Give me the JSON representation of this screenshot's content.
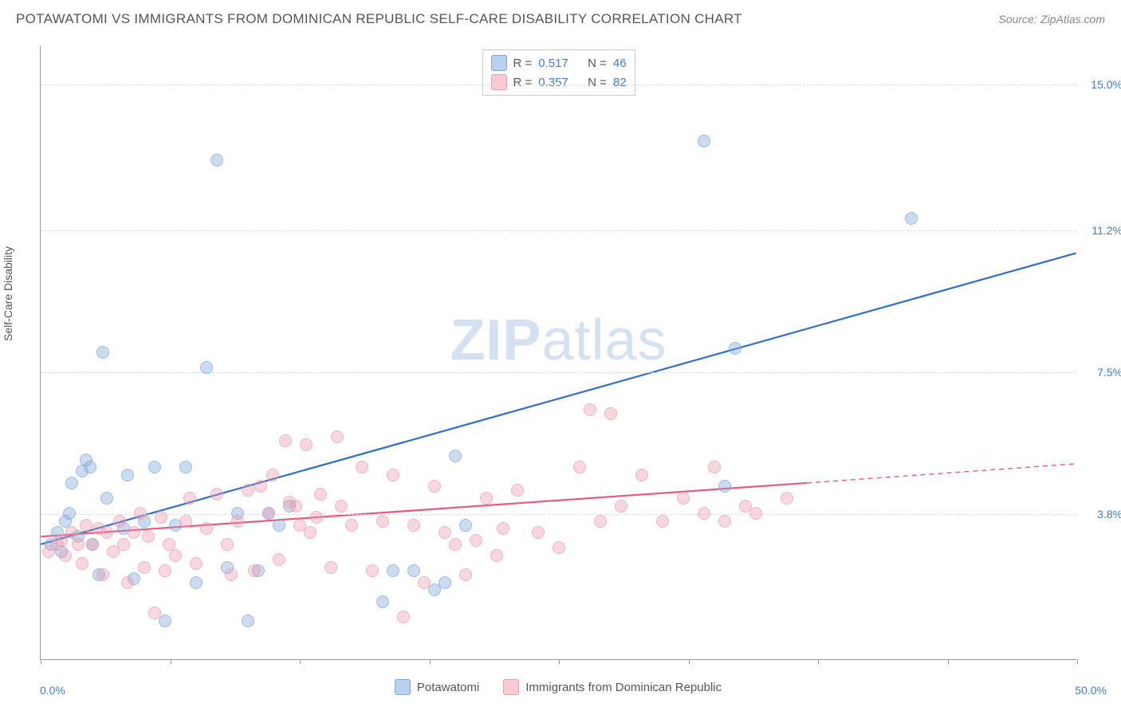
{
  "title": "POTAWATOMI VS IMMIGRANTS FROM DOMINICAN REPUBLIC SELF-CARE DISABILITY CORRELATION CHART",
  "source_label": "Source:",
  "source_value": "ZipAtlas.com",
  "ylabel": "Self-Care Disability",
  "watermark": {
    "bold": "ZIP",
    "rest": "atlas"
  },
  "chart": {
    "type": "scatter",
    "xlim": [
      0,
      50
    ],
    "ylim": [
      0,
      16
    ],
    "x_min_label": "0.0%",
    "x_max_label": "50.0%",
    "y_ticks": [
      3.8,
      7.5,
      11.2,
      15.0
    ],
    "y_tick_labels": [
      "3.8%",
      "7.5%",
      "11.2%",
      "15.0%"
    ],
    "x_tick_positions": [
      0,
      6.25,
      12.5,
      18.75,
      25,
      31.25,
      37.5,
      43.75,
      50
    ],
    "grid_color": "#dddddd",
    "axis_color": "#999999",
    "background_color": "#ffffff",
    "point_radius": 8,
    "series": [
      {
        "name": "Potawatomi",
        "color_fill": "rgba(130,170,220,0.55)",
        "color_stroke": "#7aa8d8",
        "line_color": "#2e6fd0",
        "line_width": 2.2,
        "R": "0.517",
        "N": "46",
        "trend": {
          "x1": 0,
          "y1": 3.0,
          "x2": 50,
          "y2": 10.6
        },
        "points": [
          [
            0.5,
            3.0
          ],
          [
            0.8,
            3.3
          ],
          [
            1.0,
            2.8
          ],
          [
            1.2,
            3.6
          ],
          [
            1.4,
            3.8
          ],
          [
            1.5,
            4.6
          ],
          [
            1.8,
            3.2
          ],
          [
            2.0,
            4.9
          ],
          [
            2.2,
            5.2
          ],
          [
            2.4,
            5.0
          ],
          [
            2.5,
            3.0
          ],
          [
            2.8,
            2.2
          ],
          [
            3.0,
            8.0
          ],
          [
            3.2,
            4.2
          ],
          [
            4.0,
            3.4
          ],
          [
            4.2,
            4.8
          ],
          [
            4.5,
            2.1
          ],
          [
            5.0,
            3.6
          ],
          [
            5.5,
            5.0
          ],
          [
            6.0,
            1.0
          ],
          [
            6.5,
            3.5
          ],
          [
            7.0,
            5.0
          ],
          [
            7.5,
            2.0
          ],
          [
            8.0,
            7.6
          ],
          [
            8.5,
            13.0
          ],
          [
            9.0,
            2.4
          ],
          [
            9.5,
            3.8
          ],
          [
            10.0,
            1.0
          ],
          [
            10.5,
            2.3
          ],
          [
            11.0,
            3.8
          ],
          [
            11.5,
            3.5
          ],
          [
            12.0,
            4.0
          ],
          [
            16.5,
            1.5
          ],
          [
            17.0,
            2.3
          ],
          [
            18.0,
            2.3
          ],
          [
            19.0,
            1.8
          ],
          [
            19.5,
            2.0
          ],
          [
            20.0,
            5.3
          ],
          [
            20.5,
            3.5
          ],
          [
            32.0,
            13.5
          ],
          [
            33.0,
            4.5
          ],
          [
            33.5,
            8.1
          ],
          [
            42.0,
            11.5
          ]
        ]
      },
      {
        "name": "Immigrants from Dominican Republic",
        "color_fill": "rgba(240,150,170,0.5)",
        "color_stroke": "#e89cb0",
        "line_color": "#e85a7d",
        "line_width": 2.2,
        "R": "0.357",
        "N": "82",
        "trend": {
          "x1": 0,
          "y1": 3.2,
          "x2": 37,
          "y2": 4.6
        },
        "trend_ext": {
          "x1": 37,
          "y1": 4.6,
          "x2": 50,
          "y2": 5.1
        },
        "points": [
          [
            0.4,
            2.8
          ],
          [
            0.8,
            3.0
          ],
          [
            1.0,
            3.1
          ],
          [
            1.2,
            2.7
          ],
          [
            1.5,
            3.3
          ],
          [
            1.8,
            3.0
          ],
          [
            2.0,
            2.5
          ],
          [
            2.2,
            3.5
          ],
          [
            2.5,
            3.0
          ],
          [
            2.8,
            3.4
          ],
          [
            3.0,
            2.2
          ],
          [
            3.2,
            3.3
          ],
          [
            3.5,
            2.8
          ],
          [
            3.8,
            3.6
          ],
          [
            4.0,
            3.0
          ],
          [
            4.2,
            2.0
          ],
          [
            4.5,
            3.3
          ],
          [
            4.8,
            3.8
          ],
          [
            5.0,
            2.4
          ],
          [
            5.2,
            3.2
          ],
          [
            5.5,
            1.2
          ],
          [
            5.8,
            3.7
          ],
          [
            6.0,
            2.3
          ],
          [
            6.2,
            3.0
          ],
          [
            6.5,
            2.7
          ],
          [
            7.0,
            3.6
          ],
          [
            7.2,
            4.2
          ],
          [
            7.5,
            2.5
          ],
          [
            8.0,
            3.4
          ],
          [
            8.5,
            4.3
          ],
          [
            9.0,
            3.0
          ],
          [
            9.2,
            2.2
          ],
          [
            9.5,
            3.6
          ],
          [
            10.0,
            4.4
          ],
          [
            10.3,
            2.3
          ],
          [
            10.6,
            4.5
          ],
          [
            11.0,
            3.8
          ],
          [
            11.2,
            4.8
          ],
          [
            11.5,
            2.6
          ],
          [
            11.8,
            5.7
          ],
          [
            12.0,
            4.1
          ],
          [
            12.3,
            4.0
          ],
          [
            12.5,
            3.5
          ],
          [
            12.8,
            5.6
          ],
          [
            13.0,
            3.3
          ],
          [
            13.3,
            3.7
          ],
          [
            13.5,
            4.3
          ],
          [
            14.0,
            2.4
          ],
          [
            14.3,
            5.8
          ],
          [
            14.5,
            4.0
          ],
          [
            15.0,
            3.5
          ],
          [
            15.5,
            5.0
          ],
          [
            16.0,
            2.3
          ],
          [
            16.5,
            3.6
          ],
          [
            17.0,
            4.8
          ],
          [
            17.5,
            1.1
          ],
          [
            18.0,
            3.5
          ],
          [
            18.5,
            2.0
          ],
          [
            19.0,
            4.5
          ],
          [
            19.5,
            3.3
          ],
          [
            20.0,
            3.0
          ],
          [
            20.5,
            2.2
          ],
          [
            21.0,
            3.1
          ],
          [
            21.5,
            4.2
          ],
          [
            22.0,
            2.7
          ],
          [
            22.3,
            3.4
          ],
          [
            23.0,
            4.4
          ],
          [
            24.0,
            3.3
          ],
          [
            25.0,
            2.9
          ],
          [
            26.0,
            5.0
          ],
          [
            26.5,
            6.5
          ],
          [
            27.0,
            3.6
          ],
          [
            27.5,
            6.4
          ],
          [
            28.0,
            4.0
          ],
          [
            29.0,
            4.8
          ],
          [
            30.0,
            3.6
          ],
          [
            31.0,
            4.2
          ],
          [
            32.0,
            3.8
          ],
          [
            32.5,
            5.0
          ],
          [
            33.0,
            3.6
          ],
          [
            34.0,
            4.0
          ],
          [
            34.5,
            3.8
          ],
          [
            36.0,
            4.2
          ]
        ]
      }
    ]
  },
  "stats_labels": {
    "R": "R  =",
    "N": "N  ="
  },
  "legend": {
    "items": [
      {
        "swatch": "a",
        "label": "Potawatomi"
      },
      {
        "swatch": "b",
        "label": "Immigrants from Dominican Republic"
      }
    ]
  }
}
